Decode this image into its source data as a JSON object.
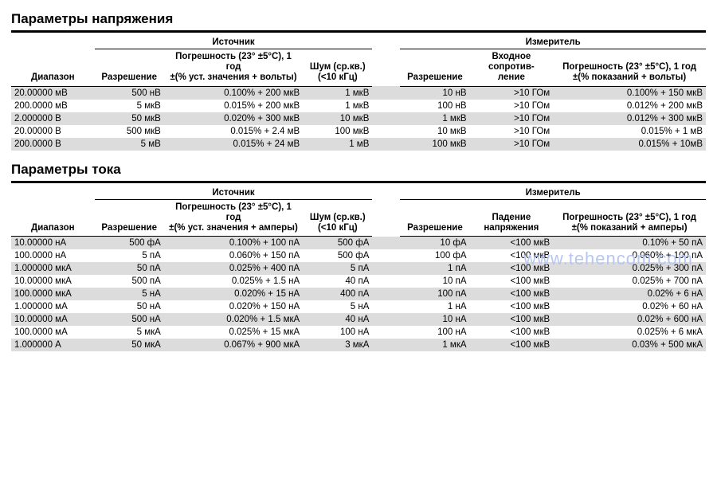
{
  "watermark": "www.tehencom.com",
  "colors": {
    "text": "#000000",
    "background": "#ffffff",
    "rowAlt": "#dcdcdc",
    "watermark": "#b7c7f2",
    "rule": "#000000"
  },
  "typography": {
    "titleFontSize": 17,
    "bodyFontSize": 11.5,
    "fontFamily": "Arial"
  },
  "voltage": {
    "title": "Параметры напряжения",
    "groupSource": "Источник",
    "groupMeter": "Измеритель",
    "headers": {
      "range": "Диапазон",
      "resolution": "Разрешение",
      "accuracy_src": "Погрешность (23° ±5°C), 1 год\n±(% уст. значения + вольты)",
      "noise": "Шум (ср.кв.)\n(<10 кГц)",
      "resolution2": "Разрешение",
      "input_res": "Входное\nсопротив-\nление",
      "accuracy_meas": "Погрешность (23° ±5°C), 1 год\n±(% показаний + вольты)"
    },
    "rows": [
      {
        "range": "20.00000 мВ",
        "res": "500 нВ",
        "acc": "0.100% + 200 мкВ",
        "noise": "1 мкВ",
        "res2": "10 нВ",
        "inres": ">10 ГОм",
        "acc2": "0.100% + 150 мкВ"
      },
      {
        "range": "200.0000 мВ",
        "res": "5 мкВ",
        "acc": "0.015% + 200 мкВ",
        "noise": "1 мкВ",
        "res2": "100 нВ",
        "inres": ">10 ГОм",
        "acc2": "0.012% + 200 мкВ"
      },
      {
        "range": "2.000000   В",
        "res": "50 мкВ",
        "acc": "0.020% + 300 мкВ",
        "noise": "10 мкВ",
        "res2": "1 мкВ",
        "inres": ">10 ГОм",
        "acc2": "0.012% + 300 мкВ"
      },
      {
        "range": "20.00000   В",
        "res": "500 мкВ",
        "acc": "0.015% +   2.4 мВ",
        "noise": "100 мкВ",
        "res2": "10 мкВ",
        "inres": ">10 ГОм",
        "acc2": "0.015% +     1 мВ"
      },
      {
        "range": "200.0000   В",
        "res": "5 мВ",
        "acc": "0.015% +   24 мВ",
        "noise": "1 мВ",
        "res2": "100 мкВ",
        "inres": ">10 ГОм",
        "acc2": "0.015% +   10мВ"
      }
    ]
  },
  "current": {
    "title": "Параметры тока",
    "groupSource": "Источник",
    "groupMeter": "Измеритель",
    "headers": {
      "range": "Диапазон",
      "resolution": "Разрешение",
      "accuracy_src": "Погрешность (23° ±5°C), 1 год\n±(% уст. значения + амперы)",
      "noise": "Шум (ср.кв.)\n(<10 кГц)",
      "resolution2": "Разрешение",
      "vdrop": "Падение\nнапряжения",
      "accuracy_meas": "Погрешность (23° ±5°C), 1 год\n±(% показаний + амперы)"
    },
    "rows": [
      {
        "range": "10.00000 нА",
        "res": "500 фА",
        "acc": "0.100% + 100 пА",
        "noise": "500 фА",
        "res2": "10 фА",
        "vd": "<100 мкВ",
        "acc2": "0.10% +   50 пА"
      },
      {
        "range": "100.0000 нА",
        "res": "5 пА",
        "acc": "0.060% + 150 пА",
        "noise": "500 фА",
        "res2": "100 фА",
        "vd": "<100 мкВ",
        "acc2": "0.060% + 100 пА"
      },
      {
        "range": "1.000000 мкА",
        "res": "50 пА",
        "acc": "0.025% + 400 пА",
        "noise": "5 пА",
        "res2": "1 пА",
        "vd": "<100 мкВ",
        "acc2": "0.025% + 300 пА"
      },
      {
        "range": "10.00000 мкА",
        "res": "500 пА",
        "acc": "0.025% +   1.5 нА",
        "noise": "40 пА",
        "res2": "10 пА",
        "vd": "<100 мкВ",
        "acc2": "0.025% + 700 пА"
      },
      {
        "range": "100.0000 мкА",
        "res": "5 нА",
        "acc": "0.020% +   15 нА",
        "noise": "400 пА",
        "res2": "100 пА",
        "vd": "<100 мкВ",
        "acc2": "0.02% +     6 нА"
      },
      {
        "range": "1.000000 мА",
        "res": "50 нА",
        "acc": "0.020% + 150 нА",
        "noise": "5 нА",
        "res2": "1 нА",
        "vd": "<100 мкВ",
        "acc2": "0.02% +   60 нА"
      },
      {
        "range": "10.00000 мА",
        "res": "500 нА",
        "acc": "0.020% +   1.5 мкА",
        "noise": "40 нА",
        "res2": "10 нА",
        "vd": "<100 мкВ",
        "acc2": "0.02% + 600 нА"
      },
      {
        "range": "100.0000 мА",
        "res": "5 мкА",
        "acc": "0.025% +   15 мкА",
        "noise": "100 нА",
        "res2": "100 нА",
        "vd": "<100 мкВ",
        "acc2": "0.025% +     6 мкА"
      },
      {
        "range": "1.000000  А",
        "res": "50 мкА",
        "acc": "0.067% + 900 мкА",
        "noise": "3 мкА",
        "res2": "1 мкА",
        "vd": "<100 мкВ",
        "acc2": "0.03% + 500 мкА"
      }
    ]
  }
}
